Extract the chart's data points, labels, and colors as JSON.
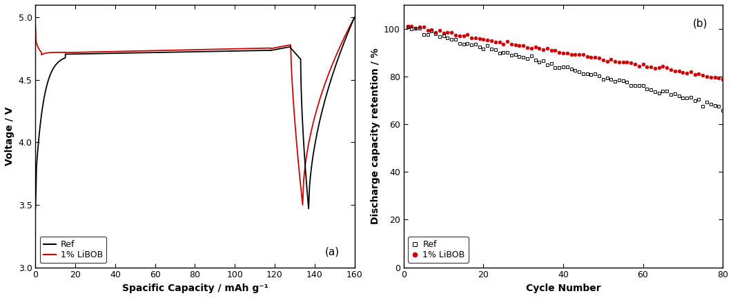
{
  "panel_a": {
    "xlabel": "Spacific Capacity / mAh g⁻¹",
    "ylabel": "Voltage / V",
    "label_a": "(a)",
    "xlim": [
      0,
      160
    ],
    "ylim": [
      3.0,
      5.1
    ],
    "xticks": [
      0,
      20,
      40,
      60,
      80,
      100,
      120,
      140,
      160
    ],
    "yticks": [
      3.0,
      3.5,
      4.0,
      4.5,
      5.0
    ],
    "legend_ref": "Ref",
    "legend_libob": "1% LiBOB",
    "color_ref": "#000000",
    "color_libob": "#cc0000"
  },
  "panel_b": {
    "xlabel": "Cycle Number",
    "ylabel": "Discharge capacity retention / %",
    "label_b": "(b)",
    "xlim": [
      0,
      80
    ],
    "ylim": [
      0,
      110
    ],
    "xticks": [
      0,
      20,
      40,
      60,
      80
    ],
    "yticks": [
      0,
      20,
      40,
      60,
      80,
      100
    ],
    "legend_ref": "Ref",
    "legend_libob": "1% LiBOB",
    "color_ref": "#000000",
    "color_libob": "#cc0000"
  }
}
